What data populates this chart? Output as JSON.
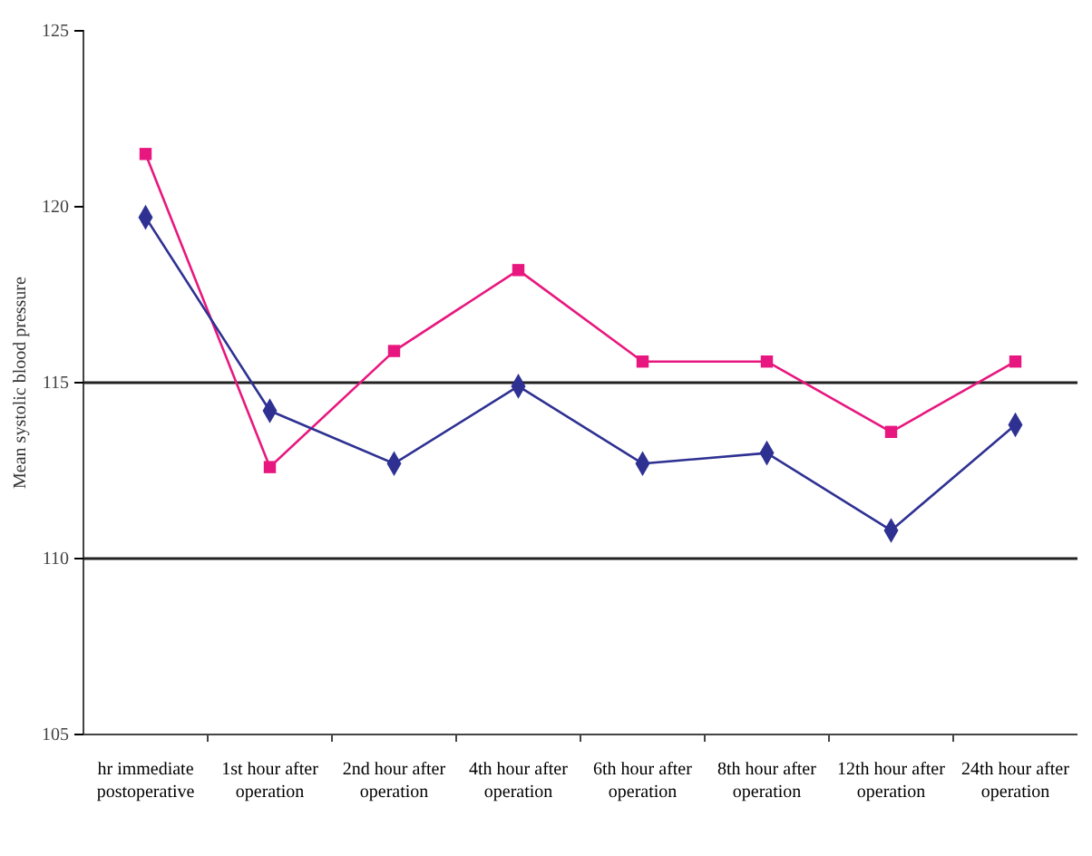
{
  "chart_data": {
    "type": "line",
    "ylabel": "Mean systolic blood pressure",
    "categories": [
      "hr immediate postoperative",
      "1st hour after operation",
      "2nd hour after operation",
      "4th hour after operation",
      "6th hour after operation",
      "8th hour after operation",
      "12th hour after operation",
      "24th hour after operation"
    ],
    "series": [
      {
        "color": "#e8177f",
        "marker": "square",
        "values": [
          121.5,
          112.6,
          115.9,
          118.2,
          115.6,
          115.6,
          113.6,
          115.6
        ]
      },
      {
        "color": "#2e3192",
        "marker": "diamond",
        "values": [
          119.7,
          114.2,
          112.7,
          114.9,
          112.7,
          113.0,
          110.8,
          113.8
        ]
      }
    ],
    "ylim": [
      105,
      125
    ],
    "yticks": [
      105,
      110,
      115,
      120,
      125
    ],
    "ref_lines": [
      {
        "axis": "y",
        "value": 115,
        "color": "#222222"
      },
      {
        "axis": "y",
        "value": 110,
        "color": "#222222"
      }
    ]
  }
}
